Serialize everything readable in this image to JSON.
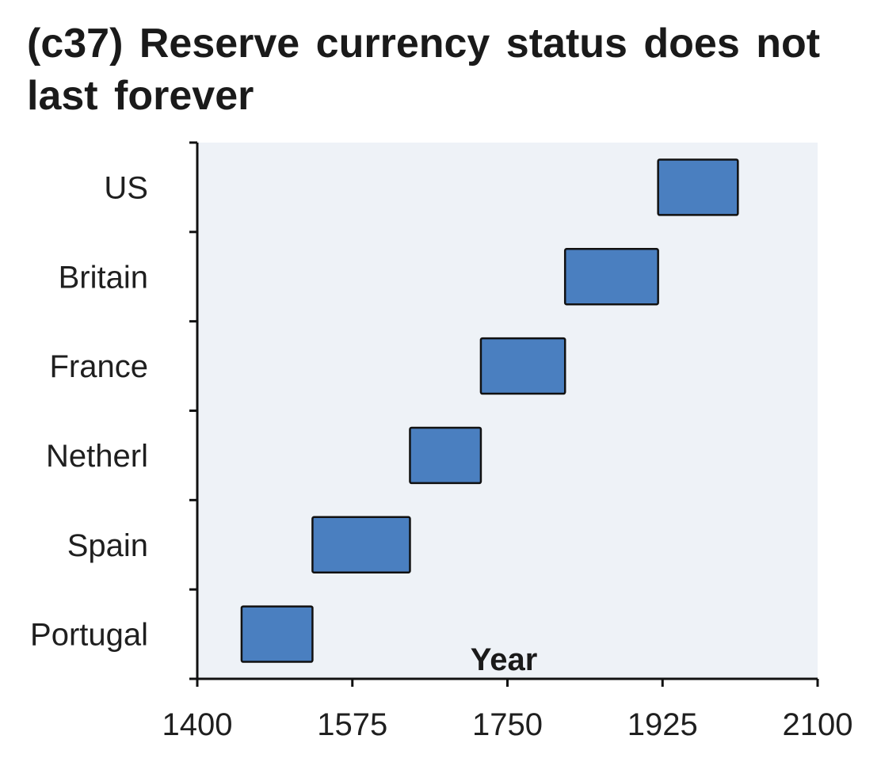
{
  "chart_data": {
    "type": "bar",
    "orientation": "horizontal",
    "subtype": "floating-range",
    "title": "(c37) Reserve currency status does not last forever",
    "xlabel": "Year",
    "ylabel": "",
    "xlim": [
      1400,
      2100
    ],
    "xticks": [
      "1400",
      "1575",
      "1750",
      "1925",
      "2100"
    ],
    "categories": [
      "US",
      "Britain",
      "France",
      "Netherl",
      "Spain",
      "Portugal"
    ],
    "ranges": [
      {
        "category": "US",
        "start": 1920,
        "end": 2010
      },
      {
        "category": "Britain",
        "start": 1815,
        "end": 1920
      },
      {
        "category": "France",
        "start": 1720,
        "end": 1815
      },
      {
        "category": "Netherl",
        "start": 1640,
        "end": 1720
      },
      {
        "category": "Spain",
        "start": 1530,
        "end": 1640
      },
      {
        "category": "Portugal",
        "start": 1450,
        "end": 1530
      }
    ],
    "bar_color": "#4a7fc0",
    "bar_border": "#111111",
    "plot_background": "#eef2f7",
    "grid": false,
    "legend": "none"
  }
}
